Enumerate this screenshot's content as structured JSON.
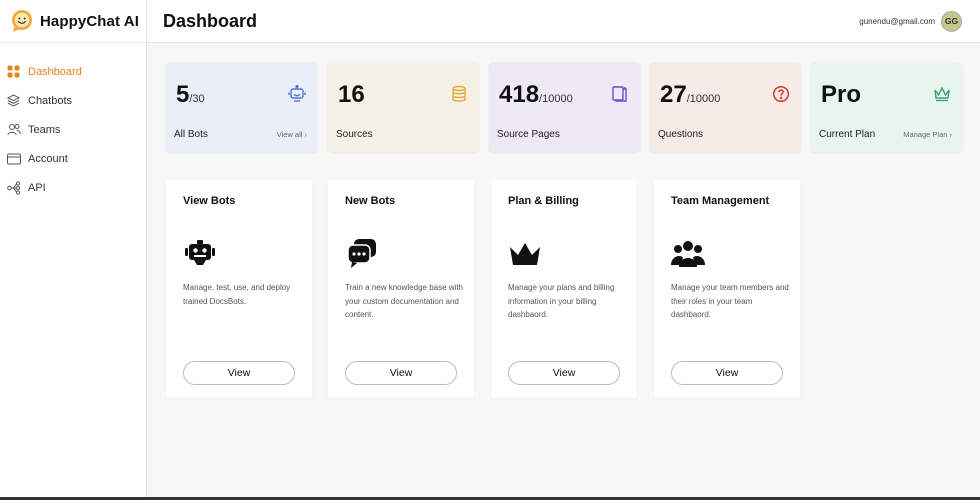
{
  "app": {
    "name": "HappyChat AI"
  },
  "sidebar": {
    "items": [
      {
        "label": "Dashboard",
        "icon": "grid-icon",
        "active": true
      },
      {
        "label": "Chatbots",
        "icon": "layers-icon"
      },
      {
        "label": "Teams",
        "icon": "users-icon"
      },
      {
        "label": "Account",
        "icon": "card-icon"
      },
      {
        "label": "API",
        "icon": "api-icon"
      }
    ]
  },
  "header": {
    "title": "Dashboard",
    "email": "gunendu@gmail.com",
    "avatar_initials": "GG"
  },
  "stats": [
    {
      "value": "5",
      "total": "/30",
      "label": "All Bots",
      "link": "View all ›",
      "icon": "robot-icon",
      "bg": "#e9eef8",
      "accent": "#4a78d6"
    },
    {
      "value": "16",
      "total": "",
      "label": "Sources",
      "link": "",
      "icon": "database-icon",
      "bg": "#f6f1e6",
      "accent": "#e9a93a"
    },
    {
      "value": "418",
      "total": "/10000",
      "label": "Source Pages",
      "link": "",
      "icon": "pages-icon",
      "bg": "#ede9f7",
      "accent": "#6a4cc9"
    },
    {
      "value": "27",
      "total": "/10000",
      "label": "Questions",
      "link": "",
      "icon": "question-icon",
      "bg": "#f7ebe8",
      "accent": "#d63a2a"
    },
    {
      "value": "Pro",
      "total": "",
      "label": "Current Plan",
      "link": "Manage Plan ›",
      "icon": "crown-icon",
      "bg": "#e8f4ef",
      "accent": "#3aa66a"
    }
  ],
  "cards": [
    {
      "title": "View Bots",
      "icon": "robot-icon",
      "desc": "Manage, test, use, and deploy trained DocsBots.",
      "button": "View"
    },
    {
      "title": "New Bots",
      "icon": "chat-bubbles-icon",
      "desc": "Train a new knowledge base with your custom documentation and content.",
      "button": "View"
    },
    {
      "title": "Plan & Billing",
      "icon": "crown-icon",
      "desc": "Manage your plans and billing information in your billing dashbaord.",
      "button": "View"
    },
    {
      "title": "Team Management",
      "icon": "team-icon",
      "desc": "Manage your team members and their roles in your team dashbaord.",
      "button": "View"
    }
  ]
}
